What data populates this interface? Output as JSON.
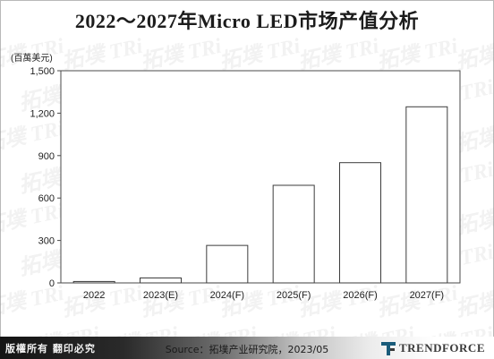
{
  "title": "2022～2027年Micro LED市场产值分析",
  "footer": {
    "copyright": "版權所有 翻印必究",
    "source": "Source：拓墣产业研究院，2023/05",
    "brand": "TRENDFORCE",
    "accent": "#1a5c7a"
  },
  "colors": {
    "bar_fill": "#ffffff",
    "bar_stroke": "#3c3c3c",
    "plot_bg": "#ffffff",
    "grid": "#c8c8c8",
    "watermark": "拓墣 TRi"
  },
  "chart_data": {
    "type": "bar",
    "title": "2022～2027年Micro LED市场产值分析",
    "ylabel": "(百萬美元)",
    "xlabel": "",
    "categories": [
      "2022",
      "2023(E)",
      "2024(F)",
      "2025(F)",
      "2026(F)",
      "2027(F)"
    ],
    "values": [
      10,
      35,
      265,
      690,
      850,
      1245
    ],
    "ylim": [
      0,
      1500
    ],
    "yticks": [
      0,
      300,
      600,
      900,
      1200,
      1500
    ],
    "ytick_labels": [
      "0",
      "300",
      "600",
      "900",
      "1,200",
      "1,500"
    ],
    "grid": false,
    "legend": "none"
  }
}
